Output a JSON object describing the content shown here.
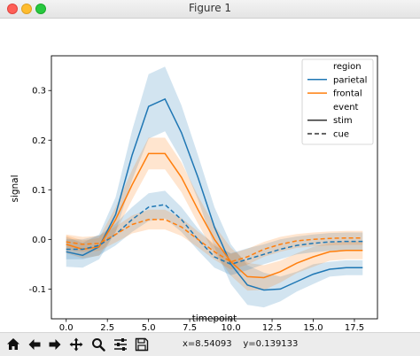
{
  "window": {
    "title": "Figure 1"
  },
  "toolbar": {
    "buttons": [
      {
        "name": "home-icon",
        "label": "Home"
      },
      {
        "name": "back-icon",
        "label": "Back"
      },
      {
        "name": "forward-icon",
        "label": "Forward"
      },
      {
        "name": "pan-icon",
        "label": "Pan"
      },
      {
        "name": "zoom-icon",
        "label": "Zoom"
      },
      {
        "name": "configure-subplots-icon",
        "label": "Subplots"
      },
      {
        "name": "save-icon",
        "label": "Save"
      }
    ],
    "x_readout": "x=8.54093",
    "y_readout": "y=0.139133"
  },
  "chart_data": {
    "type": "line",
    "xlabel": "timepoint",
    "ylabel": "signal",
    "xlim": [
      -0.9,
      18.9
    ],
    "ylim": [
      -0.16,
      0.37
    ],
    "xticks": [
      "0.0",
      "2.5",
      "5.0",
      "7.5",
      "10.0",
      "12.5",
      "15.0",
      "17.5"
    ],
    "xtick_values": [
      0,
      2.5,
      5,
      7.5,
      10,
      12.5,
      15,
      17.5
    ],
    "yticks": [
      "-0.1",
      "0.0",
      "0.1",
      "0.2",
      "0.3"
    ],
    "ytick_values": [
      -0.1,
      0,
      0.1,
      0.2,
      0.3
    ],
    "grid": false,
    "legend_position": "top-right",
    "legend": [
      {
        "label": "region",
        "kind": "title"
      },
      {
        "label": "parietal",
        "kind": "line",
        "color": "#1f77b4",
        "dash": "solid"
      },
      {
        "label": "frontal",
        "kind": "line",
        "color": "#ff7f0e",
        "dash": "solid"
      },
      {
        "label": "event",
        "kind": "title"
      },
      {
        "label": "stim",
        "kind": "line",
        "color": "#333333",
        "dash": "solid"
      },
      {
        "label": "cue",
        "kind": "line",
        "color": "#333333",
        "dash": "dashed"
      }
    ],
    "x": [
      0,
      1,
      2,
      3,
      4,
      5,
      6,
      7,
      8,
      9,
      10,
      11,
      12,
      13,
      14,
      15,
      16,
      17,
      18
    ],
    "series": [
      {
        "region": "parietal",
        "event": "stim",
        "color": "#1f77b4",
        "dash": "solid",
        "values": [
          -0.025,
          -0.032,
          -0.015,
          0.05,
          0.17,
          0.268,
          0.283,
          0.215,
          0.125,
          0.025,
          -0.05,
          -0.092,
          -0.102,
          -0.1,
          -0.085,
          -0.07,
          -0.06,
          -0.057,
          -0.057
        ],
        "ci": [
          0.03,
          0.025,
          0.025,
          0.035,
          0.05,
          0.065,
          0.065,
          0.055,
          0.045,
          0.04,
          0.04,
          0.04,
          0.035,
          0.025,
          0.02,
          0.02,
          0.015,
          0.015,
          0.015
        ]
      },
      {
        "region": "frontal",
        "event": "stim",
        "color": "#ff7f0e",
        "dash": "solid",
        "values": [
          -0.01,
          -0.02,
          -0.015,
          0.04,
          0.11,
          0.173,
          0.173,
          0.125,
          0.06,
          0.0,
          -0.045,
          -0.075,
          -0.077,
          -0.065,
          -0.048,
          -0.035,
          -0.025,
          -0.022,
          -0.022
        ],
        "ci": [
          0.018,
          0.018,
          0.018,
          0.025,
          0.03,
          0.032,
          0.032,
          0.03,
          0.028,
          0.028,
          0.028,
          0.028,
          0.025,
          0.022,
          0.02,
          0.02,
          0.018,
          0.018,
          0.018
        ]
      },
      {
        "region": "parietal",
        "event": "cue",
        "color": "#1f77b4",
        "dash": "dashed",
        "values": [
          -0.02,
          -0.02,
          -0.012,
          0.01,
          0.04,
          0.065,
          0.07,
          0.04,
          0.0,
          -0.035,
          -0.05,
          -0.04,
          -0.03,
          -0.02,
          -0.012,
          -0.008,
          -0.005,
          -0.004,
          -0.004
        ],
        "ci": [
          0.02,
          0.02,
          0.02,
          0.022,
          0.025,
          0.028,
          0.028,
          0.025,
          0.022,
          0.022,
          0.022,
          0.022,
          0.02,
          0.02,
          0.018,
          0.018,
          0.018,
          0.018,
          0.018
        ]
      },
      {
        "region": "frontal",
        "event": "cue",
        "color": "#ff7f0e",
        "dash": "dashed",
        "values": [
          -0.005,
          -0.01,
          -0.008,
          0.01,
          0.03,
          0.04,
          0.04,
          0.025,
          0.0,
          -0.025,
          -0.045,
          -0.035,
          -0.02,
          -0.01,
          -0.003,
          0.0,
          0.002,
          0.003,
          0.003
        ],
        "ci": [
          0.015,
          0.015,
          0.015,
          0.016,
          0.018,
          0.02,
          0.02,
          0.018,
          0.016,
          0.016,
          0.016,
          0.016,
          0.015,
          0.015,
          0.014,
          0.014,
          0.014,
          0.014,
          0.014
        ]
      }
    ]
  }
}
